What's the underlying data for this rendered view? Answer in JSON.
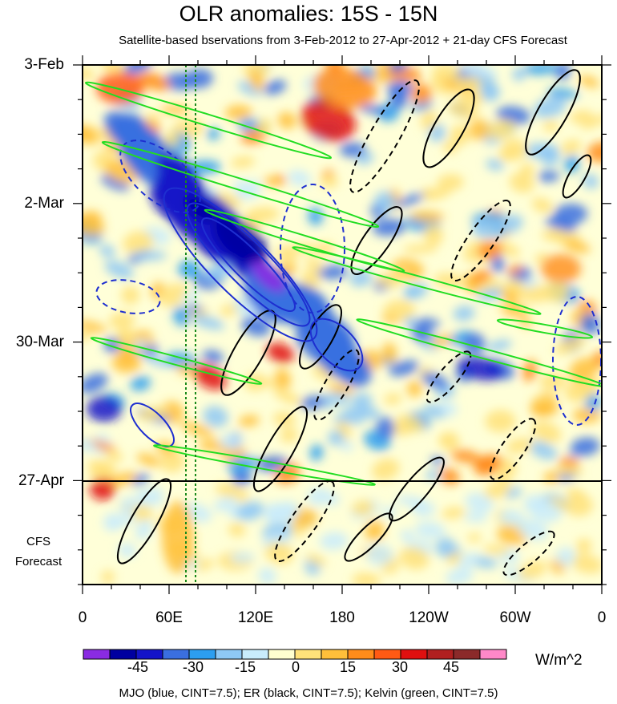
{
  "title": "OLR anomalies: 15S - 15N",
  "subtitle": "Satellite-based bservations from 3-Feb-2012 to 27-Apr-2012 + 21-day CFS Forecast",
  "y_tick_labels": [
    "3-Feb",
    "2-Mar",
    "30-Mar",
    "27-Apr"
  ],
  "forecast_label_line1": "CFS",
  "forecast_label_line2": "Forecast",
  "x_tick_labels": [
    "0",
    "60E",
    "120E",
    "180",
    "120W",
    "60W",
    "0"
  ],
  "colorbar": {
    "tick_labels": [
      "-45",
      "-30",
      "-15",
      "0",
      "15",
      "30",
      "45"
    ],
    "units": "W/m^2",
    "colors": [
      "#8a2be2",
      "#0000a0",
      "#1414c8",
      "#3a6fe0",
      "#2c9ef0",
      "#8ec8f5",
      "#c9ecfc",
      "#ffffd0",
      "#ffe27a",
      "#ffbf3a",
      "#ff8c1a",
      "#ff5a14",
      "#e01010",
      "#b02020",
      "#8b2a2a",
      "#ff88c8"
    ]
  },
  "footnote": "MJO (blue, CINT=7.5); ER (black, CINT=7.5); Kelvin (green, CINT=7.5)",
  "chart_data": {
    "type": "heatmap",
    "title": "OLR anomalies: 15S - 15N",
    "subtitle": "Satellite-based bservations from 3-Feb-2012 to 27-Apr-2012 + 21-day CFS Forecast",
    "x_axis": {
      "label": "",
      "ticks": [
        "0",
        "60E",
        "120E",
        "180",
        "120W",
        "60W",
        "0"
      ],
      "range_degrees_east": [
        0,
        360
      ]
    },
    "y_axis": {
      "label": "",
      "ticks": [
        "3-Feb",
        "2-Mar",
        "30-Mar",
        "27-Apr"
      ],
      "range": [
        "3-Feb-2012",
        "18-May-2012"
      ],
      "direction": "time increases downward"
    },
    "forecast_start": "27-Apr-2012",
    "forecast_region_label": "CFS Forecast",
    "colorbar_levels": [
      -52.5,
      -45,
      -37.5,
      -30,
      -22.5,
      -15,
      -7.5,
      0,
      7.5,
      15,
      22.5,
      30,
      37.5,
      45,
      52.5
    ],
    "units": "W/m^2",
    "overlays": [
      {
        "name": "MJO",
        "color": "blue",
        "cint": 7.5
      },
      {
        "name": "ER",
        "color": "black",
        "cint": 7.5
      },
      {
        "name": "Kelvin",
        "color": "green",
        "cint": 7.5
      }
    ],
    "notable_features": [
      {
        "description": "strong negative anomaly band (blue/purple)",
        "lon_range": "60E-150E",
        "dates": "mid-Feb to late-Mar"
      },
      {
        "description": "positive anomaly (red)",
        "lon_range": "150E-180",
        "dates": "early-to-mid Feb"
      }
    ]
  }
}
